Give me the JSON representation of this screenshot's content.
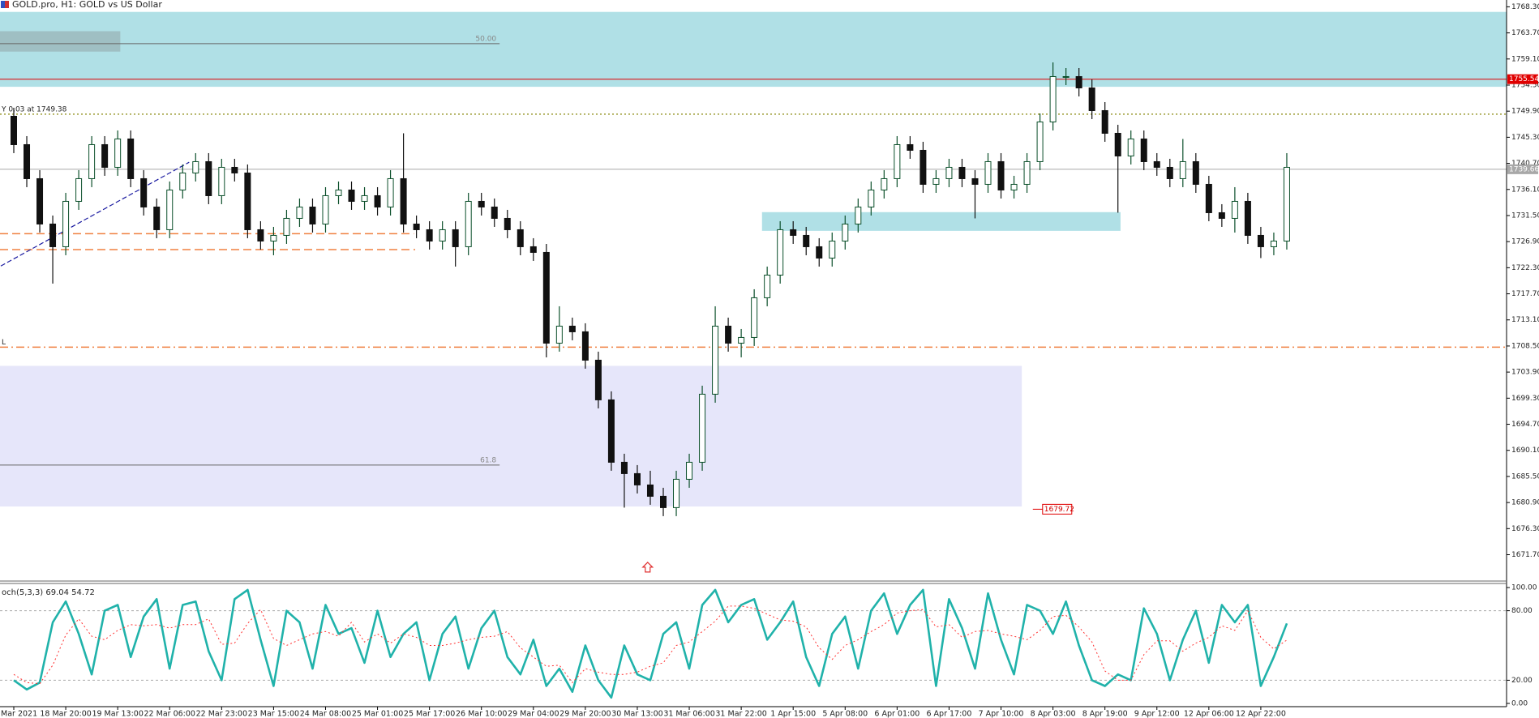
{
  "chart_data": {
    "type": "candlestick",
    "title": "GOLD.pro, H1:  GOLD vs US Dollar",
    "categories": [
      "Mar 2021",
      null,
      null,
      null,
      "18 Mar 20:00",
      null,
      null,
      null,
      "19 Mar 13:00",
      null,
      null,
      null,
      "22 Mar 06:00",
      null,
      null,
      null,
      "22 Mar 23:00",
      null,
      null,
      null,
      "23 Mar 15:00",
      null,
      null,
      null,
      "24 Mar 08:00",
      null,
      null,
      null,
      "25 Mar 01:00",
      null,
      null,
      null,
      "25 Mar 17:00",
      null,
      null,
      null,
      "26 Mar 10:00",
      null,
      null,
      null,
      "29 Mar 04:00",
      null,
      null,
      null,
      "29 Mar 20:00",
      null,
      null,
      null,
      "30 Mar 13:00",
      null,
      null,
      null,
      "31 Mar 06:00",
      null,
      null,
      null,
      "31 Mar 22:00",
      null,
      null,
      null,
      "1 Apr 15:00",
      null,
      null,
      null,
      "5 Apr 08:00",
      null,
      null,
      null,
      "6 Apr 01:00",
      null,
      null,
      null,
      "6 Apr 17:00",
      null,
      null,
      null,
      "7 Apr 10:00",
      null,
      null,
      null,
      "8 Apr 03:00",
      null,
      null,
      null,
      "8 Apr 19:00",
      null,
      null,
      null,
      "9 Apr 12:00",
      null,
      null,
      null,
      "12 Apr 06:00",
      null,
      null,
      null,
      "12 Apr 22:00",
      null,
      null
    ],
    "open": [
      1749,
      1744,
      1738,
      1730,
      1726,
      1734,
      1738,
      1744,
      1740,
      1745,
      1738,
      1733,
      1729,
      1736,
      1739,
      1741,
      1735,
      1740,
      1739,
      1729,
      1727,
      1728,
      1731,
      1733,
      1730,
      1735,
      1736,
      1734,
      1735,
      1733,
      1738,
      1730,
      1729,
      1727,
      1729,
      1726,
      1734,
      1733,
      1731,
      1729,
      1726,
      1725,
      1709,
      1712,
      1711,
      1706,
      1699,
      1688,
      1686,
      1684,
      1682,
      1680,
      1685,
      1688,
      1700,
      1712,
      1709,
      1710,
      1717,
      1721,
      1729,
      1728,
      1726,
      1724,
      1727,
      1730,
      1733,
      1736,
      1738,
      1744,
      1743,
      1737,
      1738,
      1740,
      1738,
      1737,
      1741,
      1736,
      1737,
      1741,
      1748,
      1756,
      1756,
      1754,
      1750,
      1746,
      1742,
      1745,
      1741,
      1740,
      1738,
      1741,
      1737,
      1732,
      1731,
      1734,
      1728,
      1726,
      1727
    ],
    "high": [
      1750.5,
      1745.5,
      1739.5,
      1731.5,
      1735.5,
      1739.5,
      1745.5,
      1745.5,
      1746.5,
      1746.5,
      1739.5,
      1734.5,
      1737.5,
      1740.5,
      1742.5,
      1742.5,
      1741.5,
      1741.5,
      1740.5,
      1730.5,
      1729.5,
      1732.5,
      1734.5,
      1734.5,
      1736.5,
      1737.5,
      1737.5,
      1736.5,
      1736.5,
      1739.5,
      1746,
      1731.5,
      1730.5,
      1730.5,
      1730.5,
      1735.5,
      1735.5,
      1734.5,
      1732.5,
      1730.5,
      1727.5,
      1726.5,
      1715.5,
      1713.5,
      1712.5,
      1707.5,
      1700.5,
      1689.5,
      1687.5,
      1686.5,
      1683.5,
      1686.5,
      1689.5,
      1701.5,
      1715.5,
      1713.5,
      1711.5,
      1718.5,
      1722.5,
      1730.5,
      1730.5,
      1729.5,
      1727.5,
      1728.5,
      1731.5,
      1734.5,
      1737.5,
      1739.5,
      1745.5,
      1745.5,
      1744.5,
      1739.5,
      1741.5,
      1741.5,
      1739.5,
      1742.5,
      1742.5,
      1738.5,
      1742.5,
      1749.5,
      1758.5,
      1757.5,
      1757.5,
      1755.5,
      1751.5,
      1747.5,
      1746.5,
      1746.5,
      1742.5,
      1741.5,
      1745,
      1742.5,
      1738.5,
      1733.5,
      1736.5,
      1735.5,
      1729.5,
      1728.5,
      1742.5
    ],
    "low": [
      1742.5,
      1736.5,
      1728.5,
      1719.5,
      1724.5,
      1732.5,
      1736.5,
      1738.5,
      1738.5,
      1736.5,
      1731.5,
      1727.5,
      1727.5,
      1734.5,
      1737.5,
      1733.5,
      1733.5,
      1737.5,
      1727.5,
      1725.5,
      1724.5,
      1726.5,
      1729.5,
      1728.5,
      1728.5,
      1733.5,
      1732.5,
      1732.5,
      1731.5,
      1731.5,
      1728.5,
      1727.5,
      1725.5,
      1725.5,
      1722.5,
      1724.5,
      1731.5,
      1729.5,
      1727.5,
      1724.5,
      1723.5,
      1706.5,
      1707.5,
      1709.5,
      1704.5,
      1697.5,
      1686.5,
      1680,
      1682.5,
      1680.5,
      1678.5,
      1678.5,
      1683.5,
      1686.5,
      1698.5,
      1707.5,
      1706.5,
      1708.5,
      1715.5,
      1719.5,
      1726.5,
      1724.5,
      1722.5,
      1722.5,
      1725.5,
      1728.5,
      1731.5,
      1734.5,
      1736.5,
      1741.5,
      1735.5,
      1735.5,
      1736.5,
      1736.5,
      1731,
      1735.5,
      1734.5,
      1734.5,
      1735.5,
      1739.5,
      1746.5,
      1754.5,
      1752.5,
      1748.5,
      1744.5,
      1732,
      1740.5,
      1739.5,
      1738.5,
      1736.5,
      1736.5,
      1735.5,
      1730.5,
      1729.5,
      1728.5,
      1726.5,
      1724,
      1724.5,
      1725.5
    ],
    "close": [
      1744,
      1738,
      1730,
      1726,
      1734,
      1738,
      1744,
      1740,
      1745,
      1738,
      1733,
      1729,
      1736,
      1739,
      1741,
      1735,
      1740,
      1739,
      1729,
      1727,
      1728,
      1731,
      1733,
      1730,
      1735,
      1736,
      1734,
      1735,
      1733,
      1738,
      1730,
      1729,
      1727,
      1729,
      1726,
      1734,
      1733,
      1731,
      1729,
      1726,
      1725,
      1709,
      1712,
      1711,
      1706,
      1699,
      1688,
      1686,
      1684,
      1682,
      1680,
      1685,
      1688,
      1700,
      1712,
      1709,
      1710,
      1717,
      1721,
      1729,
      1728,
      1726,
      1724,
      1727,
      1730,
      1733,
      1736,
      1738,
      1744,
      1743,
      1737,
      1738,
      1740,
      1738,
      1737,
      1741,
      1736,
      1737,
      1741,
      1748,
      1756,
      1756,
      1754,
      1750,
      1746,
      1742,
      1745,
      1741,
      1740,
      1738,
      1741,
      1737,
      1732,
      1731,
      1734,
      1728,
      1726,
      1727,
      1740
    ],
    "up_color": "#0b4f2a",
    "down_color": "#111111",
    "ylim": [
      1667.2,
      1769.5
    ],
    "yticks": [
      {
        "value": 1768.3,
        "label": "1768.30"
      },
      {
        "value": 1763.7,
        "label": "1763.70"
      },
      {
        "value": 1759.1,
        "label": "1759.10"
      },
      {
        "value": 1754.5,
        "label": "1754.50"
      },
      {
        "value": 1749.9,
        "label": "1749.90"
      },
      {
        "value": 1745.3,
        "label": "1745.30"
      },
      {
        "value": 1740.7,
        "label": "1740.70"
      },
      {
        "value": 1736.1,
        "label": "1736.10"
      },
      {
        "value": 1731.5,
        "label": "1731.50"
      },
      {
        "value": 1726.9,
        "label": "1726.90"
      },
      {
        "value": 1722.3,
        "label": "1722.30"
      },
      {
        "value": 1717.7,
        "label": "1717.70"
      },
      {
        "value": 1713.1,
        "label": "1713.10"
      },
      {
        "value": 1708.5,
        "label": "1708.50"
      },
      {
        "value": 1703.9,
        "label": "1703.90"
      },
      {
        "value": 1699.3,
        "label": "1699.30"
      },
      {
        "value": 1694.7,
        "label": "1694.70"
      },
      {
        "value": 1690.1,
        "label": "1690.10"
      },
      {
        "value": 1685.5,
        "label": "1685.50"
      },
      {
        "value": 1680.9,
        "label": "1680.90"
      },
      {
        "value": 1676.3,
        "label": "1676.30"
      },
      {
        "value": 1671.7,
        "label": "1671.70"
      }
    ],
    "zones": [
      {
        "low": 1754.2,
        "high": 1767.4,
        "from": -1.1,
        "to": 115,
        "color": "#b0e0e6"
      },
      {
        "low": 1728.8,
        "high": 1732.1,
        "from": 57.6,
        "to": 85.2,
        "color": "#b0e0e6"
      },
      {
        "low": 1680.2,
        "high": 1705,
        "from": -1.1,
        "to": 77.6,
        "color": "#e6e6fa"
      },
      {
        "low": 1760.4,
        "high": 1764,
        "from": -1.1,
        "to": 8.2,
        "color": "#9fbfc3"
      }
    ],
    "fib_levels": [
      {
        "value": 1761.8,
        "label": "50.00",
        "from": -1.1,
        "to": 37.4
      },
      {
        "value": 1687.5,
        "label": "61.8",
        "from": -1.1,
        "to": 37.4
      }
    ],
    "levels": [
      {
        "value": 1755.54,
        "color": "#e00000",
        "style": "solid",
        "tag": true
      },
      {
        "value": 1739.66,
        "color": "#a8a8a8",
        "style": "solid",
        "tag": true
      },
      {
        "value": 1749.38,
        "color": "#9a9a30",
        "style": "dotted",
        "text": "Y 0.03 at 1749.38"
      },
      {
        "value": 1708.3,
        "color": "#f08040",
        "style": "dashdot",
        "text": "L"
      },
      {
        "value": 1728.3,
        "color": "#f08040",
        "style": "dashed",
        "to": 30.8
      },
      {
        "value": 1725.5,
        "color": "#f08040",
        "style": "dashed",
        "to": 30.9
      }
    ],
    "price_label": {
      "value": 1679.72,
      "at": 79.2,
      "color": "#e00000"
    },
    "trendline": {
      "from": [
        -1,
        1722.6
      ],
      "to": [
        13.5,
        1740.9
      ],
      "color": "#1a1aa0"
    },
    "arrow": {
      "at": 48.8,
      "price": 1669.5,
      "color": "#e03030"
    },
    "indicator": {
      "type": "line",
      "label": "och(5,3,3) 69.04 54.72",
      "ylim": [
        -2.8,
        102.8
      ],
      "yticks": [
        {
          "value": 100,
          "label": "100.00"
        },
        {
          "value": 80,
          "label": "80.00"
        },
        {
          "value": 20,
          "label": "20.00"
        },
        {
          "value": 0,
          "label": "0.00"
        }
      ],
      "levels": [
        80,
        20
      ],
      "series": [
        {
          "color": "#20b2aa",
          "style": "solid",
          "values": [
            20,
            12,
            18,
            70,
            88,
            60,
            25,
            80,
            85,
            40,
            75,
            90,
            30,
            85,
            88,
            45,
            20,
            90,
            98,
            55,
            15,
            80,
            70,
            30,
            85,
            60,
            65,
            35,
            80,
            40,
            60,
            70,
            20,
            60,
            75,
            30,
            65,
            80,
            40,
            25,
            55,
            15,
            30,
            10,
            50,
            20,
            5,
            50,
            25,
            20,
            60,
            70,
            30,
            85,
            98,
            70,
            85,
            90,
            55,
            70,
            88,
            40,
            15,
            60,
            75,
            30,
            80,
            95,
            60,
            85,
            98,
            15,
            90,
            65,
            30,
            95,
            55,
            25,
            85,
            80,
            60,
            88,
            50,
            20,
            15,
            25,
            20,
            82,
            60,
            20,
            55,
            80,
            35,
            85,
            70,
            85,
            15,
            40,
            69.04
          ]
        },
        {
          "color": "#ff3030",
          "style": "dotted",
          "values": [
            25,
            18,
            17,
            33,
            59,
            73,
            58,
            55,
            63,
            68,
            67,
            68,
            65,
            68,
            68,
            73,
            51,
            52,
            69,
            81,
            56,
            50,
            55,
            60,
            62,
            58,
            70,
            53,
            60,
            52,
            60,
            57,
            50,
            50,
            52,
            55,
            57,
            58,
            62,
            48,
            40,
            32,
            33,
            18,
            30,
            27,
            25,
            25,
            27,
            32,
            35,
            50,
            53,
            62,
            71,
            84,
            84,
            82,
            77,
            72,
            71,
            66,
            48,
            38,
            50,
            55,
            62,
            68,
            78,
            80,
            81,
            66,
            68,
            57,
            62,
            63,
            60,
            58,
            55,
            63,
            75,
            76,
            66,
            53,
            28,
            20,
            20,
            42,
            54,
            54,
            45,
            52,
            57,
            67,
            63,
            80,
            57,
            47,
            54.72
          ]
        }
      ]
    }
  }
}
